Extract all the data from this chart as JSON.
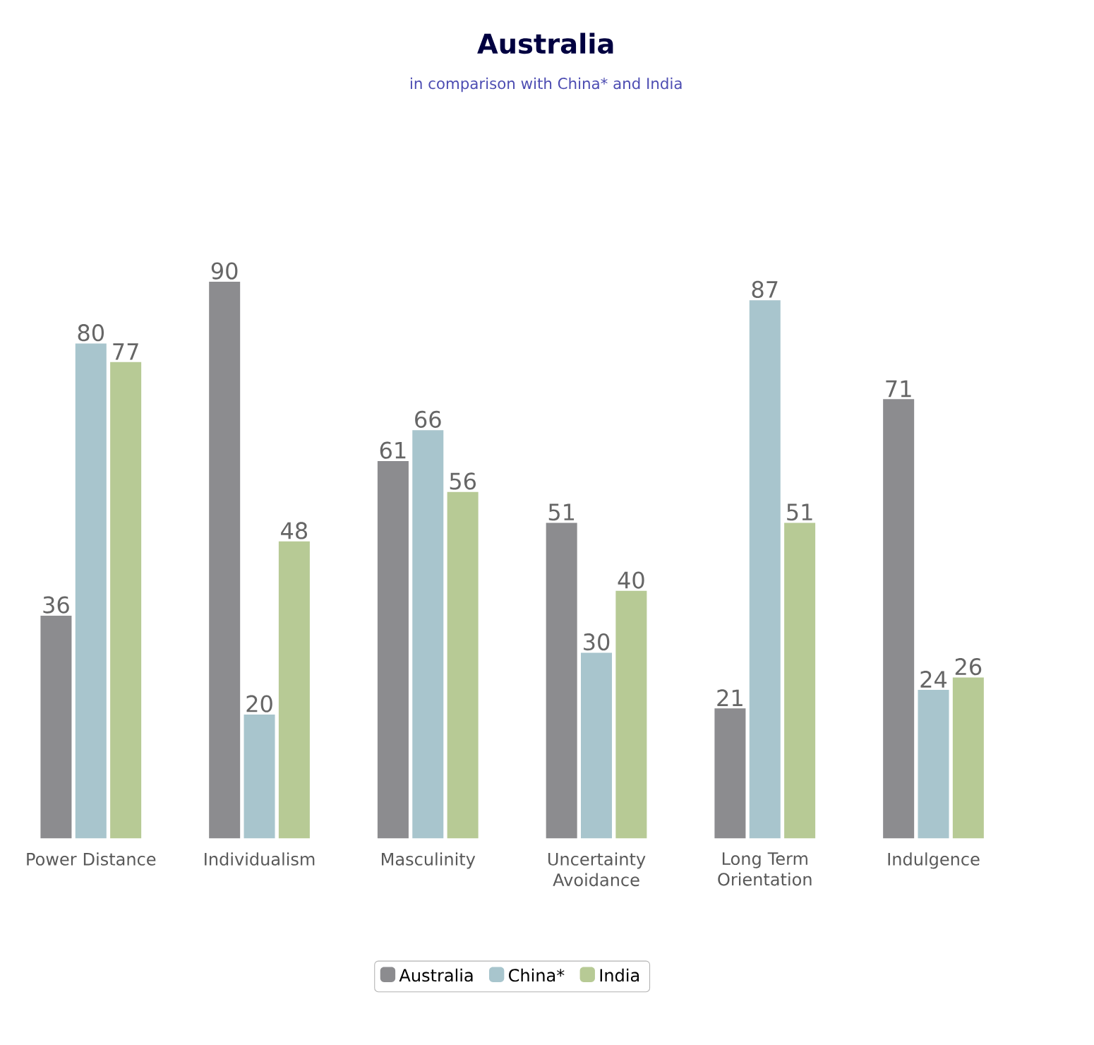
{
  "chart_data": {
    "type": "bar",
    "title": "Australia",
    "subtitle": "in comparison with China* and India",
    "categories": [
      "Power Distance",
      "Individualism",
      "Masculinity",
      "Uncertainty Avoidance",
      "Long Term Orientation",
      "Indulgence"
    ],
    "series": [
      {
        "name": "Australia",
        "color": "#8c8c8f",
        "values": [
          36,
          90,
          61,
          51,
          21,
          71
        ]
      },
      {
        "name": "China*",
        "color": "#a8c5cd",
        "values": [
          80,
          20,
          66,
          30,
          87,
          24
        ]
      },
      {
        "name": "India",
        "color": "#b7ca95",
        "values": [
          77,
          48,
          56,
          40,
          51,
          26
        ]
      }
    ],
    "data_labels": true,
    "legend": "bottom"
  }
}
